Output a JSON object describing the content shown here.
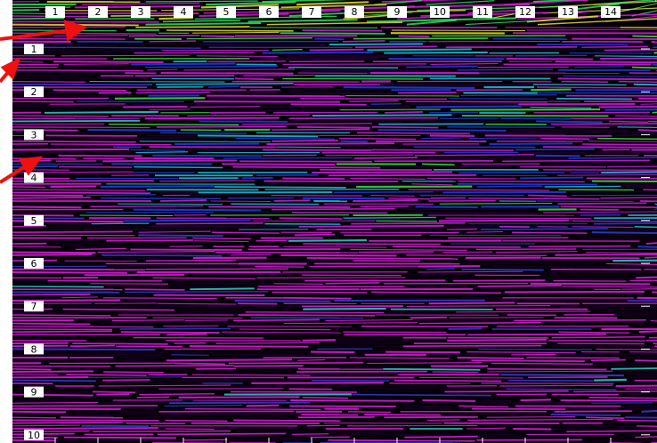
{
  "section": {
    "trace_labels": [
      "1",
      "2",
      "3",
      "4",
      "5",
      "6",
      "7",
      "8",
      "9",
      "10",
      "11",
      "12",
      "13",
      "14"
    ],
    "time_labels": [
      "1",
      "2",
      "3",
      "4",
      "5",
      "6",
      "7",
      "8",
      "9",
      "10"
    ]
  }
}
